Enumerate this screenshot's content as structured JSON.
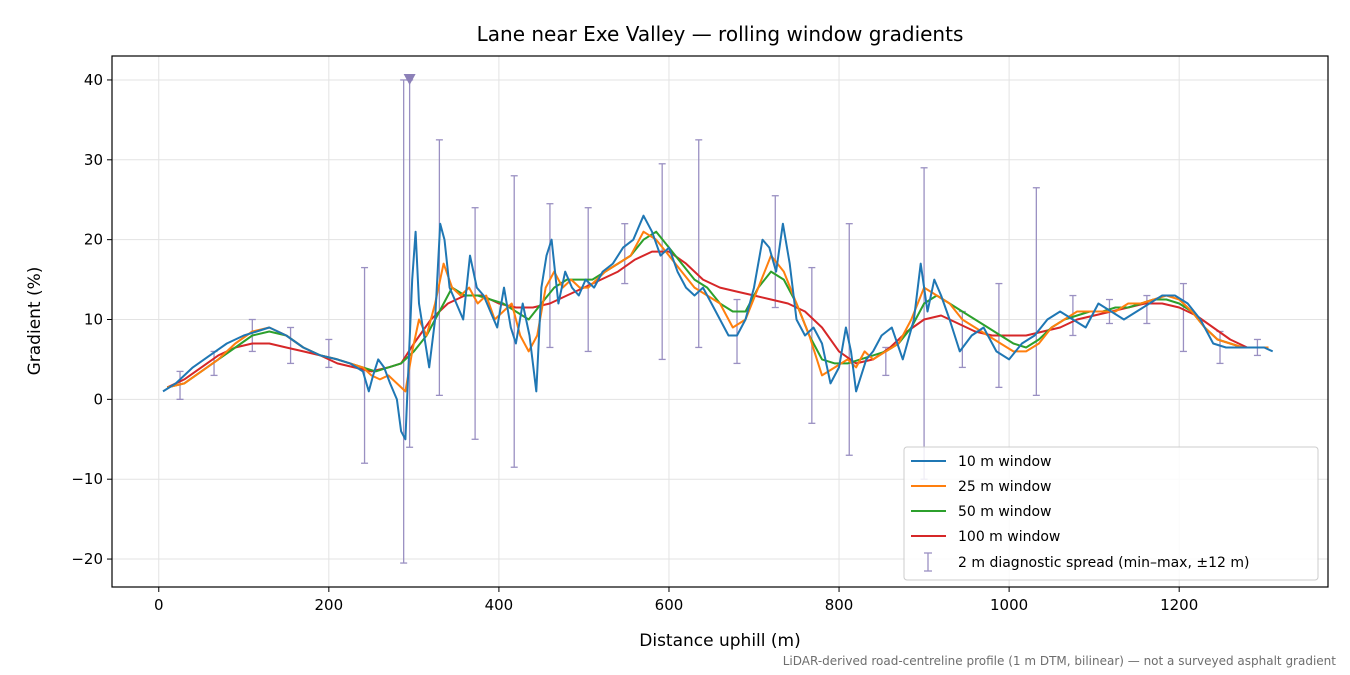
{
  "chart_data": {
    "type": "line",
    "title": "Lane near Exe Valley — rolling window gradients",
    "xlabel": "Distance uphill (m)",
    "ylabel": "Gradient (%)",
    "footnote": "LiDAR-derived road-centreline profile (1 m DTM, bilinear) — not a surveyed asphalt gradient",
    "xlim": [
      -55,
      1375
    ],
    "ylim": [
      -23.5,
      43
    ],
    "xticks": [
      0,
      200,
      400,
      600,
      800,
      1000,
      1200
    ],
    "yticks": [
      -20,
      -10,
      0,
      10,
      20,
      30,
      40
    ],
    "xtick_labels": [
      "0",
      "200",
      "400",
      "600",
      "800",
      "1000",
      "1200"
    ],
    "ytick_labels": [
      "−20",
      "−10",
      "0",
      "10",
      "20",
      "30",
      "40"
    ],
    "grid": true,
    "legend_position": "lower-right",
    "series": [
      {
        "name": "10 m window",
        "color": "#1f77b4",
        "x": [
          5,
          20,
          40,
          60,
          80,
          100,
          115,
          130,
          150,
          170,
          190,
          210,
          225,
          240,
          247,
          252,
          258,
          265,
          272,
          280,
          285,
          290,
          294,
          298,
          302,
          306,
          312,
          318,
          325,
          331,
          336,
          342,
          350,
          358,
          366,
          374,
          382,
          390,
          398,
          406,
          414,
          420,
          428,
          436,
          444,
          450,
          456,
          462,
          470,
          478,
          486,
          494,
          502,
          512,
          522,
          534,
          546,
          558,
          570,
          580,
          590,
          600,
          610,
          620,
          630,
          640,
          650,
          660,
          670,
          680,
          690,
          700,
          710,
          718,
          726,
          734,
          742,
          750,
          760,
          770,
          780,
          790,
          800,
          808,
          814,
          820,
          826,
          832,
          840,
          850,
          862,
          875,
          888,
          896,
          904,
          912,
          920,
          930,
          942,
          956,
          970,
          985,
          1000,
          1015,
          1030,
          1045,
          1060,
          1075,
          1090,
          1105,
          1120,
          1135,
          1150,
          1165,
          1180,
          1195,
          1210,
          1225,
          1240,
          1255,
          1270,
          1285,
          1300,
          1310
        ],
        "y": [
          1,
          2,
          4,
          5.5,
          7,
          8,
          8.5,
          9,
          8,
          6.5,
          5.5,
          5,
          4.5,
          3.5,
          1,
          3,
          5,
          4,
          2,
          0,
          -4,
          -5,
          5,
          15,
          21,
          12,
          8,
          4,
          10,
          22,
          20,
          14,
          12,
          10,
          18,
          14,
          13,
          11,
          9,
          14,
          9,
          7,
          12,
          8,
          1,
          14,
          18,
          20,
          12,
          16,
          14,
          13,
          15,
          14,
          16,
          17,
          19,
          20,
          23,
          21,
          18,
          19,
          16,
          14,
          13,
          14,
          12,
          10,
          8,
          8,
          10,
          14,
          20,
          19,
          16,
          22,
          17,
          10,
          8,
          9,
          7,
          2,
          4,
          9,
          6,
          1,
          3,
          5,
          6,
          8,
          9,
          5,
          10,
          17,
          11,
          15,
          13,
          10,
          6,
          8,
          9,
          6,
          5,
          7,
          8,
          10,
          11,
          10,
          9,
          12,
          11,
          10,
          11,
          12,
          13,
          13,
          12,
          10,
          7,
          6.5,
          6.5,
          6.5,
          6.5,
          6
        ]
      },
      {
        "name": "25 m window",
        "color": "#ff7f0e",
        "x": [
          10,
          30,
          50,
          70,
          90,
          110,
          130,
          150,
          170,
          190,
          210,
          225,
          240,
          250,
          260,
          270,
          280,
          290,
          298,
          306,
          315,
          325,
          335,
          345,
          355,
          365,
          375,
          385,
          395,
          405,
          415,
          425,
          435,
          445,
          455,
          465,
          475,
          485,
          495,
          505,
          515,
          525,
          540,
          555,
          570,
          585,
          600,
          615,
          630,
          645,
          660,
          675,
          690,
          705,
          720,
          735,
          750,
          765,
          780,
          795,
          810,
          820,
          830,
          840,
          855,
          870,
          885,
          900,
          915,
          930,
          945,
          960,
          975,
          990,
          1005,
          1020,
          1035,
          1050,
          1065,
          1080,
          1095,
          1110,
          1125,
          1140,
          1155,
          1170,
          1185,
          1200,
          1215,
          1230,
          1245,
          1260,
          1275,
          1290,
          1305
        ],
        "y": [
          1.5,
          2,
          3.5,
          5,
          7,
          8.5,
          9,
          8,
          6.5,
          5.5,
          5,
          4.5,
          4,
          3,
          2.5,
          3,
          2,
          1,
          6,
          10,
          8,
          12,
          17,
          14,
          13,
          14,
          12,
          13,
          10,
          11,
          12,
          8,
          6,
          8,
          14,
          16,
          14,
          15,
          14,
          14,
          15,
          16,
          17,
          18,
          21,
          20,
          18,
          16,
          14,
          13,
          12,
          9,
          10,
          14,
          18,
          16,
          12,
          8,
          3,
          4,
          5,
          4,
          6,
          5,
          6,
          7,
          10,
          14,
          13,
          12,
          10,
          9,
          8,
          7,
          6,
          6,
          7,
          9,
          10,
          11,
          11,
          11,
          11,
          12,
          12,
          12.5,
          13,
          12.5,
          11,
          9,
          7.5,
          7,
          6.5,
          6.5,
          6.5
        ]
      },
      {
        "name": "50 m window",
        "color": "#2ca02c",
        "x": [
          10,
          30,
          50,
          70,
          90,
          110,
          130,
          150,
          170,
          190,
          210,
          225,
          240,
          255,
          270,
          285,
          300,
          315,
          330,
          345,
          360,
          375,
          390,
          405,
          420,
          435,
          450,
          465,
          480,
          495,
          510,
          525,
          540,
          555,
          570,
          585,
          600,
          615,
          630,
          645,
          660,
          675,
          690,
          705,
          720,
          735,
          750,
          765,
          780,
          795,
          810,
          825,
          840,
          855,
          870,
          885,
          900,
          915,
          930,
          945,
          960,
          975,
          990,
          1005,
          1020,
          1035,
          1050,
          1065,
          1080,
          1095,
          1110,
          1125,
          1140,
          1155,
          1170,
          1185,
          1200,
          1215,
          1230,
          1245,
          1260,
          1275,
          1290,
          1305
        ],
        "y": [
          1.5,
          2,
          3.5,
          5,
          6.5,
          8,
          8.5,
          8,
          6.5,
          5.5,
          5,
          4.5,
          4,
          3.5,
          4,
          4.5,
          6,
          8,
          11,
          14,
          13,
          13,
          12.5,
          12,
          11,
          10,
          12,
          14,
          15,
          15,
          15,
          16,
          17,
          18,
          20,
          21,
          19,
          17,
          15,
          14,
          12,
          11,
          11,
          14,
          16,
          15,
          12,
          8,
          5,
          4.5,
          4.5,
          5,
          5.5,
          6,
          7,
          9,
          12,
          13,
          12,
          11,
          10,
          9,
          8,
          7,
          6.5,
          7.5,
          9,
          10,
          10.5,
          11,
          11,
          11.5,
          11.5,
          12,
          12.5,
          12.5,
          12,
          11,
          9,
          7.5,
          7,
          6.5,
          6.5,
          6.5
        ]
      },
      {
        "name": "100 m window",
        "color": "#d62728",
        "x": [
          10,
          30,
          50,
          70,
          90,
          110,
          130,
          150,
          170,
          190,
          210,
          230,
          250,
          270,
          285,
          300,
          320,
          340,
          360,
          380,
          400,
          420,
          440,
          460,
          480,
          500,
          520,
          540,
          560,
          580,
          600,
          620,
          640,
          660,
          680,
          700,
          720,
          740,
          760,
          780,
          800,
          820,
          840,
          860,
          880,
          900,
          920,
          940,
          960,
          980,
          1000,
          1020,
          1040,
          1060,
          1080,
          1100,
          1120,
          1140,
          1160,
          1180,
          1200,
          1220,
          1240,
          1260,
          1280,
          1300
        ],
        "y": [
          1.5,
          2.5,
          4,
          5.5,
          6.5,
          7,
          7,
          6.5,
          6,
          5.5,
          4.5,
          4,
          3.5,
          4,
          4.5,
          7,
          10,
          12,
          13,
          13,
          12,
          11.5,
          11.5,
          12,
          13,
          14,
          15,
          16,
          17.5,
          18.5,
          18.5,
          17,
          15,
          14,
          13.5,
          13,
          12.5,
          12,
          11,
          9,
          6,
          4.5,
          5,
          6.5,
          8.5,
          10,
          10.5,
          9.5,
          8.5,
          8,
          8,
          8,
          8.5,
          9,
          10,
          10.5,
          11,
          11.5,
          12,
          12,
          11.5,
          10.5,
          9,
          7.5,
          6.5,
          6.5
        ]
      },
      {
        "name": "2 m diagnostic spread (min–max, ±12 m)",
        "color": "#9a90c2",
        "x": [
          25,
          65,
          110,
          155,
          200,
          242,
          288,
          295,
          330,
          372,
          418,
          460,
          505,
          548,
          592,
          635,
          680,
          725,
          768,
          812,
          855,
          900,
          945,
          988,
          1032,
          1075,
          1118,
          1162,
          1205,
          1248,
          1292
        ],
        "ymin": [
          0,
          3,
          6,
          4.5,
          4,
          -8,
          -20.5,
          -6,
          0.5,
          -5,
          -8.5,
          6.5,
          6,
          14.5,
          5,
          6.5,
          4.5,
          11.5,
          -3,
          -7,
          3,
          -10,
          4,
          1.5,
          0.5,
          8,
          9.5,
          9.5,
          6,
          4.5,
          5.5
        ],
        "ymax": [
          3.5,
          6,
          10,
          9,
          7.5,
          16.5,
          40,
          40,
          32.5,
          24,
          28,
          24.5,
          24,
          22,
          29.5,
          32.5,
          12.5,
          25.5,
          16.5,
          22,
          6.5,
          29,
          11,
          14.5,
          26.5,
          13,
          12.5,
          13,
          14.5,
          8.5,
          7.5
        ],
        "clipped_marker_x": 295
      }
    ]
  }
}
